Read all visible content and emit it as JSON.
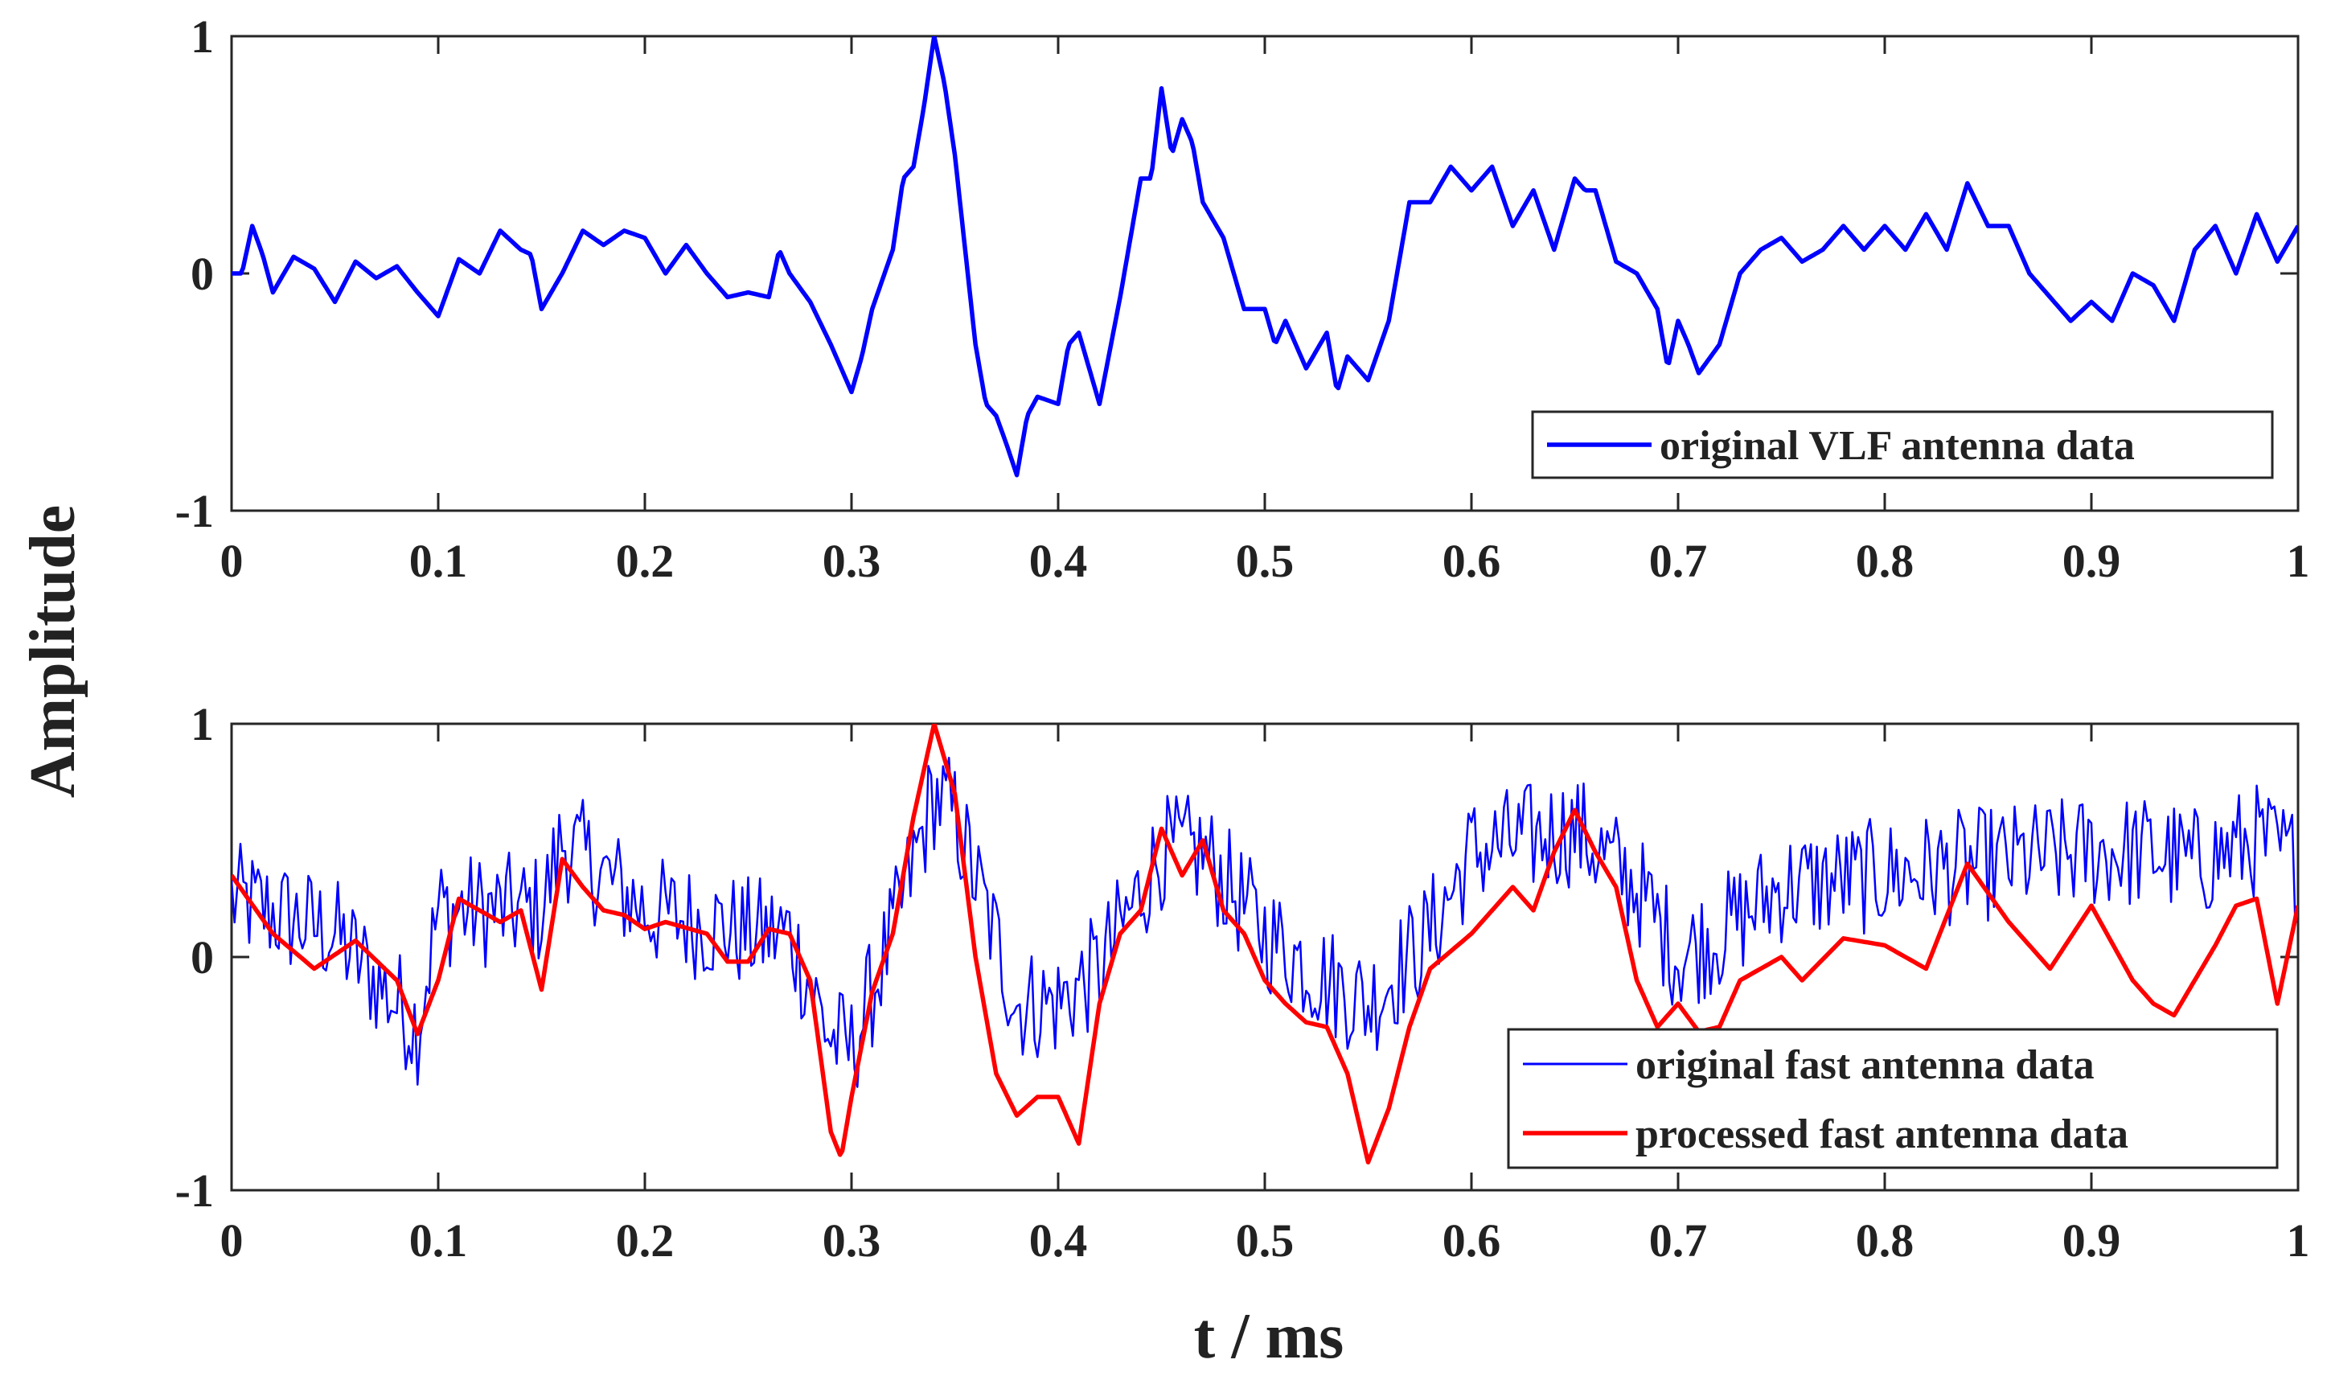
{
  "figure": {
    "ylabel": "Amplitude",
    "xlabel": "t / ms"
  },
  "chart_data": [
    {
      "type": "line",
      "title": "",
      "xlabel": "",
      "ylabel": "Amplitude",
      "xlim": [
        0,
        1
      ],
      "ylim": [
        -1,
        1
      ],
      "xticks": [
        "0",
        "0.1",
        "0.2",
        "0.3",
        "0.4",
        "0.5",
        "0.6",
        "0.7",
        "0.8",
        "0.9",
        "1"
      ],
      "yticks": [
        "-1",
        "0",
        "1"
      ],
      "legend_position": "bottom-right",
      "series": [
        {
          "name": "original VLF antenna data",
          "color": "#0000ff",
          "line_style": "thick",
          "x": [
            0,
            0.005,
            0.01,
            0.015,
            0.02,
            0.03,
            0.04,
            0.05,
            0.06,
            0.07,
            0.08,
            0.09,
            0.1,
            0.11,
            0.12,
            0.13,
            0.14,
            0.145,
            0.15,
            0.16,
            0.17,
            0.18,
            0.19,
            0.2,
            0.21,
            0.22,
            0.23,
            0.24,
            0.25,
            0.26,
            0.265,
            0.27,
            0.28,
            0.29,
            0.3,
            0.305,
            0.31,
            0.32,
            0.325,
            0.33,
            0.335,
            0.34,
            0.345,
            0.35,
            0.36,
            0.365,
            0.37,
            0.375,
            0.38,
            0.385,
            0.39,
            0.4,
            0.405,
            0.41,
            0.42,
            0.43,
            0.44,
            0.445,
            0.45,
            0.455,
            0.46,
            0.465,
            0.47,
            0.48,
            0.49,
            0.5,
            0.505,
            0.51,
            0.52,
            0.53,
            0.535,
            0.54,
            0.55,
            0.56,
            0.57,
            0.58,
            0.59,
            0.6,
            0.61,
            0.62,
            0.63,
            0.64,
            0.65,
            0.655,
            0.66,
            0.67,
            0.68,
            0.69,
            0.695,
            0.7,
            0.705,
            0.71,
            0.72,
            0.73,
            0.74,
            0.75,
            0.76,
            0.77,
            0.78,
            0.79,
            0.8,
            0.81,
            0.82,
            0.83,
            0.84,
            0.85,
            0.86,
            0.87,
            0.88,
            0.89,
            0.9,
            0.91,
            0.92,
            0.93,
            0.94,
            0.95,
            0.96,
            0.97,
            0.98,
            0.99,
            1.0
          ],
          "y": [
            0.0,
            0.0,
            0.2,
            0.08,
            -0.08,
            0.07,
            0.02,
            -0.12,
            0.05,
            -0.02,
            0.03,
            -0.08,
            -0.18,
            0.06,
            0.0,
            0.18,
            0.1,
            0.08,
            -0.15,
            0.0,
            0.18,
            0.12,
            0.18,
            0.15,
            0.0,
            0.12,
            0.0,
            -0.1,
            -0.08,
            -0.1,
            0.1,
            0.0,
            -0.12,
            -0.3,
            -0.5,
            -0.35,
            -0.15,
            0.1,
            0.4,
            0.45,
            0.7,
            1.0,
            0.8,
            0.5,
            -0.3,
            -0.55,
            -0.6,
            -0.72,
            -0.85,
            -0.6,
            -0.52,
            -0.55,
            -0.3,
            -0.25,
            -0.55,
            -0.1,
            0.4,
            0.4,
            0.78,
            0.5,
            0.65,
            0.55,
            0.3,
            0.15,
            -0.15,
            -0.15,
            -0.3,
            -0.2,
            -0.4,
            -0.25,
            -0.5,
            -0.35,
            -0.45,
            -0.2,
            0.3,
            0.3,
            0.45,
            0.35,
            0.45,
            0.2,
            0.35,
            0.1,
            0.4,
            0.35,
            0.35,
            0.05,
            0.0,
            -0.15,
            -0.4,
            -0.2,
            -0.3,
            -0.42,
            -0.3,
            0.0,
            0.1,
            0.15,
            0.05,
            0.1,
            0.2,
            0.1,
            0.2,
            0.1,
            0.25,
            0.1,
            0.38,
            0.2,
            0.2,
            0.0,
            -0.1,
            -0.2,
            -0.12,
            -0.2,
            0.0,
            -0.05,
            -0.2,
            0.1,
            0.2,
            0.0,
            0.25,
            0.05,
            0.2
          ]
        }
      ]
    },
    {
      "type": "line",
      "title": "",
      "xlabel": "t / ms",
      "ylabel": "Amplitude",
      "xlim": [
        0,
        1
      ],
      "ylim": [
        -1,
        1
      ],
      "xticks": [
        "0",
        "0.1",
        "0.2",
        "0.3",
        "0.4",
        "0.5",
        "0.6",
        "0.7",
        "0.8",
        "0.9",
        "1"
      ],
      "yticks": [
        "-1",
        "0",
        "1"
      ],
      "legend_position": "bottom-right",
      "series": [
        {
          "name": "original fast antenna data",
          "color": "#0000ff",
          "line_style": "thin noisy",
          "x": [
            0,
            0.05,
            0.09,
            0.1,
            0.15,
            0.16,
            0.2,
            0.25,
            0.27,
            0.29,
            0.3,
            0.32,
            0.34,
            0.35,
            0.38,
            0.4,
            0.42,
            0.45,
            0.47,
            0.5,
            0.53,
            0.55,
            0.58,
            0.6,
            0.65,
            0.68,
            0.7,
            0.72,
            0.75,
            0.8,
            0.85,
            0.9,
            0.93,
            0.95,
            0.98,
            1.0
          ],
          "y": [
            0.25,
            0.1,
            -0.3,
            0.2,
            0.2,
            0.5,
            0.2,
            0.1,
            0.1,
            -0.35,
            -0.4,
            0.1,
            0.7,
            0.6,
            -0.2,
            -0.2,
            -0.05,
            0.45,
            0.45,
            0.1,
            -0.1,
            -0.2,
            0.1,
            0.45,
            0.55,
            0.3,
            0.0,
            0.1,
            0.3,
            0.35,
            0.4,
            0.45,
            0.45,
            0.4,
            0.5,
            0.4
          ],
          "noise_amplitude": 0.25
        },
        {
          "name": "processed fast antenna data",
          "color": "#ff0000",
          "line_style": "thick",
          "x": [
            0,
            0.02,
            0.04,
            0.06,
            0.08,
            0.09,
            0.1,
            0.11,
            0.13,
            0.14,
            0.15,
            0.16,
            0.17,
            0.18,
            0.19,
            0.2,
            0.21,
            0.23,
            0.24,
            0.25,
            0.26,
            0.27,
            0.28,
            0.29,
            0.295,
            0.3,
            0.31,
            0.32,
            0.33,
            0.34,
            0.35,
            0.36,
            0.37,
            0.38,
            0.39,
            0.4,
            0.41,
            0.42,
            0.43,
            0.44,
            0.45,
            0.46,
            0.47,
            0.48,
            0.49,
            0.5,
            0.51,
            0.52,
            0.53,
            0.54,
            0.55,
            0.56,
            0.57,
            0.58,
            0.6,
            0.62,
            0.63,
            0.64,
            0.65,
            0.66,
            0.67,
            0.68,
            0.69,
            0.7,
            0.71,
            0.72,
            0.73,
            0.74,
            0.75,
            0.76,
            0.78,
            0.8,
            0.82,
            0.84,
            0.86,
            0.88,
            0.9,
            0.92,
            0.93,
            0.94,
            0.96,
            0.97,
            0.98,
            0.99,
            1.0
          ],
          "y": [
            0.35,
            0.1,
            -0.05,
            0.07,
            -0.1,
            -0.33,
            -0.1,
            0.25,
            0.15,
            0.2,
            -0.14,
            0.42,
            0.3,
            0.2,
            0.18,
            0.12,
            0.15,
            0.1,
            -0.02,
            -0.02,
            0.12,
            0.1,
            -0.1,
            -0.75,
            -0.86,
            -0.6,
            -0.15,
            0.1,
            0.6,
            1.0,
            0.7,
            0.0,
            -0.5,
            -0.68,
            -0.6,
            -0.6,
            -0.8,
            -0.2,
            0.1,
            0.2,
            0.55,
            0.35,
            0.5,
            0.2,
            0.1,
            -0.1,
            -0.2,
            -0.28,
            -0.3,
            -0.5,
            -0.88,
            -0.65,
            -0.3,
            -0.05,
            0.1,
            0.3,
            0.2,
            0.45,
            0.63,
            0.45,
            0.3,
            -0.1,
            -0.3,
            -0.2,
            -0.32,
            -0.3,
            -0.1,
            -0.05,
            0.0,
            -0.1,
            0.08,
            0.05,
            -0.05,
            0.4,
            0.15,
            -0.05,
            0.22,
            -0.1,
            -0.2,
            -0.25,
            0.05,
            0.22,
            0.25,
            -0.2,
            0.22
          ]
        }
      ]
    }
  ]
}
